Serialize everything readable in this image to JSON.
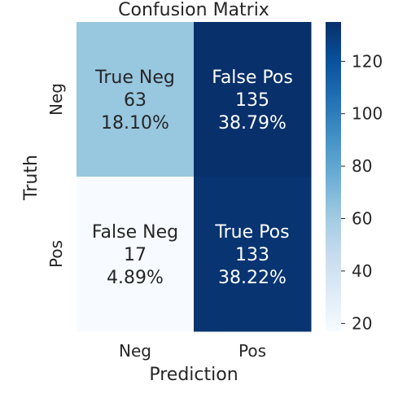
{
  "chart_data": {
    "type": "heatmap",
    "title": "Confusion Matrix",
    "xlabel": "Prediction",
    "ylabel": "Truth",
    "x_categories": [
      "Neg",
      "Pos"
    ],
    "y_categories": [
      "Neg",
      "Pos"
    ],
    "values": [
      [
        63,
        135
      ],
      [
        17,
        133
      ]
    ],
    "percentages": [
      [
        "18.10%",
        "38.79%"
      ],
      [
        "4.89%",
        "38.22%"
      ]
    ],
    "cell_labels": [
      [
        "True Neg",
        "False Pos"
      ],
      [
        "False Neg",
        "True Pos"
      ]
    ],
    "colormap": "Blues",
    "color_range": [
      17,
      135
    ],
    "colorbar_ticks": [
      20,
      40,
      60,
      80,
      100,
      120
    ]
  }
}
